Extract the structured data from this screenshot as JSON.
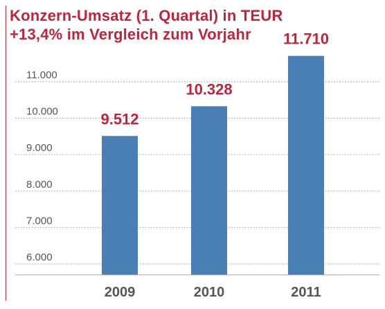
{
  "chart_data": {
    "type": "bar",
    "title": "Konzern-Umsatz (1. Quartal) in TEUR",
    "subtitle": "+13,4% im Vergleich zum Vorjahr",
    "categories": [
      "2009",
      "2010",
      "2011"
    ],
    "values": [
      9512,
      10328,
      11710
    ],
    "data_labels": [
      "9.512",
      "10.328",
      "11.710"
    ],
    "y_ticks": [
      6000,
      7000,
      8000,
      9000,
      10000,
      11000
    ],
    "y_tick_labels": [
      "6.000",
      "7.000",
      "8.000",
      "9.000",
      "10.000",
      "11.000"
    ],
    "ylim": [
      5700,
      12000
    ],
    "xlabel": "",
    "ylabel": "",
    "grid": "horizontal dotted",
    "legend": "none",
    "colors": {
      "bar": "#4a7fb5",
      "title": "#c0233a",
      "data_label": "#c0233a",
      "axis_text": "#555555",
      "grid": "#a8a8a8"
    }
  }
}
